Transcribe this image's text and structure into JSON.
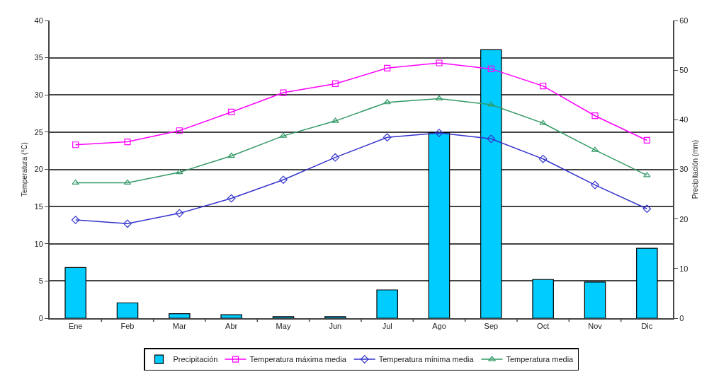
{
  "chart_data": {
    "type": "line",
    "categories": [
      "Ene",
      "Feb",
      "Mar",
      "Abr",
      "May",
      "Jun",
      "Jul",
      "Ago",
      "Sep",
      "Oct",
      "Nov",
      "Dic"
    ],
    "ylabel": "Temperatura (°C)",
    "y2label": "Precipitación (mm)",
    "ylim": [
      0,
      40
    ],
    "yticks": [
      0,
      5,
      10,
      15,
      20,
      25,
      30,
      35,
      40
    ],
    "y2lim": [
      0,
      60
    ],
    "y2ticks": [
      0,
      10,
      20,
      30,
      40,
      50,
      60
    ],
    "grid": "y",
    "legend": "bottom",
    "series": [
      {
        "name": "Precipitación",
        "type": "bar",
        "axis": "y2",
        "color": "#00ccff",
        "values": [
          10.2,
          3.1,
          0.9,
          0.7,
          0.3,
          0.3,
          5.7,
          37.4,
          54.1,
          7.8,
          7.3,
          14.1
        ]
      },
      {
        "name": "Temperatura máxima media",
        "color": "#ff00ff",
        "marker": "square",
        "values": [
          23.3,
          23.7,
          25.2,
          27.7,
          30.3,
          31.5,
          33.6,
          34.3,
          33.5,
          31.2,
          27.2,
          23.9
        ]
      },
      {
        "name": "Temperatura mínima media",
        "color": "#3333cc",
        "marker": "diamond",
        "values": [
          13.2,
          12.7,
          14.1,
          16.1,
          18.6,
          21.6,
          24.3,
          24.9,
          24.1,
          21.4,
          17.9,
          14.7
        ]
      },
      {
        "name": "Temperatura media",
        "color": "#339966",
        "marker": "triangle",
        "values": [
          18.2,
          18.2,
          19.6,
          21.8,
          24.5,
          26.5,
          29.0,
          29.5,
          28.7,
          26.2,
          22.6,
          19.2
        ]
      }
    ]
  }
}
